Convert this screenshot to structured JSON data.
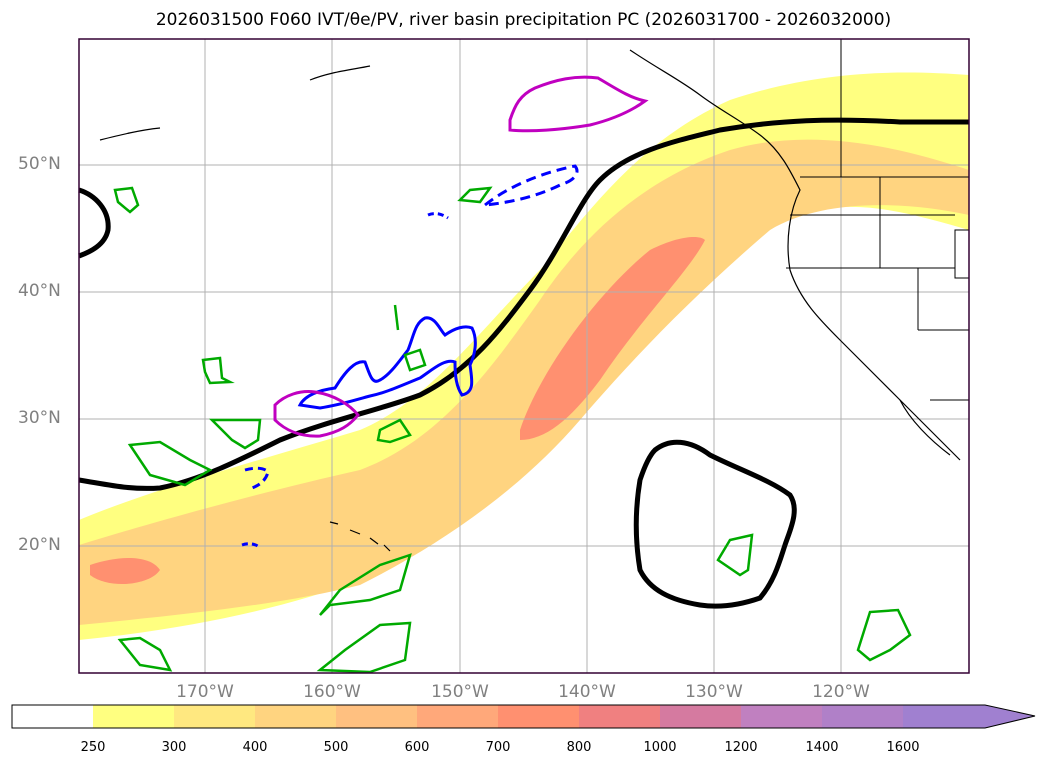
{
  "title": "2026031500 F060 IVT/θe/PV, river basin precipitation PC (2026031700 - 2026032000)",
  "latitudes": [
    {
      "id": "lat-50",
      "label": "50°N"
    },
    {
      "id": "lat-40",
      "label": "40°N"
    },
    {
      "id": "lat-30",
      "label": "30°N"
    },
    {
      "id": "lat-20",
      "label": "20°N"
    }
  ],
  "longitudes": [
    {
      "id": "lon-170",
      "label": "170°W"
    },
    {
      "id": "lon-160",
      "label": "160°W"
    },
    {
      "id": "lon-150",
      "label": "150°W"
    },
    {
      "id": "lon-140",
      "label": "140°W"
    },
    {
      "id": "lon-130",
      "label": "130°W"
    },
    {
      "id": "lon-120",
      "label": "120°W"
    }
  ],
  "colorbar": {
    "levels": [
      "250",
      "300",
      "400",
      "500",
      "600",
      "700",
      "800",
      "1000",
      "1200",
      "1400",
      "1600"
    ],
    "colors": [
      "#ffffff",
      "#ffff80",
      "#ffe880",
      "#ffd480",
      "#ffc080",
      "#ffa87a",
      "#ff9070",
      "#f08080",
      "#d57aa0",
      "#c080c0",
      "#a080d0"
    ]
  },
  "contour_colors": {
    "ivt_low": "#ffff80",
    "ivt_mid": "#ffd480",
    "ivt_high": "#ff9070",
    "theta_e": "#000000",
    "pv_negative": "#0000ff",
    "pv_positive": "#00aa00",
    "precip": "#c000c0"
  }
}
